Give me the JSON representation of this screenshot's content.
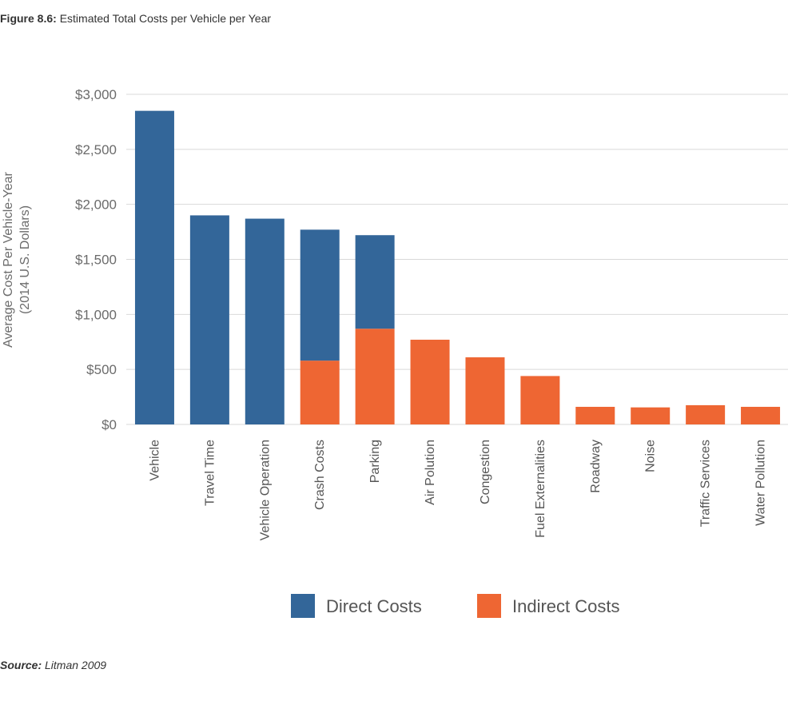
{
  "figure": {
    "label": "Figure 8.6:",
    "title": "Estimated Total Costs per Vehicle per Year"
  },
  "source": {
    "label": "Source:",
    "text": "Litman 2009"
  },
  "colors": {
    "direct": "#336699",
    "indirect": "#EE6633",
    "grid": "#d9d9d9"
  },
  "chart_data": {
    "type": "bar",
    "stacked": true,
    "categories": [
      "Vehicle",
      "Travel Time",
      "Vehicle Operation",
      "Crash Costs",
      "Parking",
      "Air Polution",
      "Congestion",
      "Fuel Externalities",
      "Roadway",
      "Noise",
      "Traffic Services",
      "Water Pollution"
    ],
    "series": [
      {
        "name": "Indirect Costs",
        "color": "#EE6633",
        "values": [
          0,
          0,
          0,
          580,
          870,
          770,
          610,
          440,
          160,
          155,
          175,
          160
        ]
      },
      {
        "name": "Direct Costs",
        "color": "#336699",
        "values": [
          2850,
          1900,
          1870,
          1190,
          850,
          0,
          0,
          0,
          0,
          0,
          0,
          0
        ]
      }
    ],
    "ylabel": [
      "Average Cost Per Vehicle-Year",
      "(2014 U.S. Dollars)"
    ],
    "ylim": [
      0,
      3000
    ],
    "yticks": [
      0,
      500,
      1000,
      1500,
      2000,
      2500,
      3000
    ],
    "ytick_labels": [
      "$0",
      "$500",
      "$1,000",
      "$1,500",
      "$2,000",
      "$2,500",
      "$3,000"
    ],
    "grid": true,
    "legend": {
      "position": "bottom",
      "entries": [
        {
          "label": "Direct Costs",
          "color": "#336699"
        },
        {
          "label": "Indirect Costs",
          "color": "#EE6633"
        }
      ]
    }
  }
}
